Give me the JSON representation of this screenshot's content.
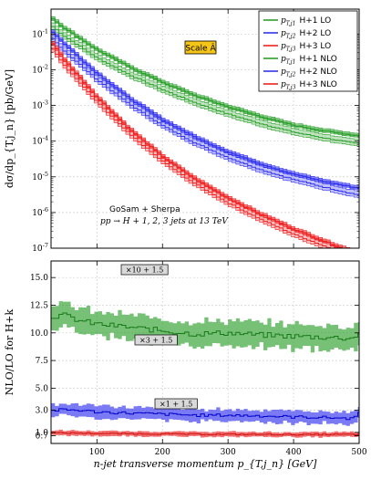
{
  "chart_data": [
    {
      "type": "line",
      "panel": "top",
      "ylabel": "dσ/dp_{T,j_n} [pb/GeV]",
      "yscale": "log",
      "ylim": [
        1e-07,
        0.5
      ],
      "xlim": [
        30,
        500
      ],
      "yticks": [
        "10^{-1}",
        "10^{-2}",
        "10^{-3}",
        "10^{-4}",
        "10^{-5}",
        "10^{-6}",
        "10^{-7}"
      ],
      "legend_position": "top-right",
      "annotation_scale": "Scale Â",
      "annotation_tool": "GoSam + Sherpa",
      "annotation_process": "pp → H + 1, 2, 3 jets at 13 TeV",
      "series": [
        {
          "name": "p_{T,j_1}  H+1 LO",
          "color": "#2ca02c",
          "order": "LO",
          "x": [
            30,
            50,
            75,
            100,
            150,
            200,
            250,
            300,
            350,
            400,
            450,
            490,
            500
          ],
          "values": [
            0.18,
            0.09,
            0.045,
            0.022,
            0.0073,
            0.0028,
            0.0012,
            0.00058,
            0.00031,
            0.00018,
            0.00012,
            9e-05,
            8.5e-05
          ]
        },
        {
          "name": "p_{T,j_2}  H+2 LO",
          "color": "#3333ee",
          "order": "LO",
          "x": [
            30,
            50,
            75,
            100,
            150,
            200,
            250,
            300,
            350,
            400,
            450,
            490,
            500
          ],
          "values": [
            0.085,
            0.035,
            0.014,
            0.0055,
            0.0011,
            0.00028,
            9e-05,
            3.5e-05,
            1.6e-05,
            8.5e-06,
            5e-06,
            3.4e-06,
            3.1e-06
          ]
        },
        {
          "name": "p_{T,j_3}  H+3 LO",
          "color": "#ee2222",
          "order": "LO",
          "x": [
            30,
            50,
            75,
            100,
            150,
            200,
            250,
            300,
            350,
            400,
            450,
            490,
            500
          ],
          "values": [
            0.045,
            0.014,
            0.0042,
            0.0013,
            0.00016,
            2.8e-05,
            6.5e-06,
            1.9e-06,
            6.5e-07,
            2.5e-07,
            1.1e-07,
            6e-08,
            5e-08
          ]
        },
        {
          "name": "p_{T,j_1}  H+1 NLO",
          "color": "#2ca02c",
          "order": "NLO",
          "x": [
            30,
            50,
            75,
            100,
            150,
            200,
            250,
            300,
            350,
            400,
            450,
            490,
            500
          ],
          "values": [
            0.3,
            0.15,
            0.075,
            0.037,
            0.012,
            0.0045,
            0.0019,
            0.00092,
            0.00049,
            0.00028,
            0.00019,
            0.00015,
            0.00014
          ]
        },
        {
          "name": "p_{T,j_2}  H+2 NLO",
          "color": "#3333ee",
          "order": "NLO",
          "x": [
            30,
            50,
            75,
            100,
            150,
            200,
            250,
            300,
            350,
            400,
            450,
            490,
            500
          ],
          "values": [
            0.13,
            0.055,
            0.021,
            0.0082,
            0.0016,
            0.0004,
            0.00013,
            5e-05,
            2.3e-05,
            1.2e-05,
            7.2e-06,
            5.2e-06,
            4.8e-06
          ]
        },
        {
          "name": "p_{T,j_3}  H+3 NLO",
          "color": "#ee2222",
          "order": "NLO",
          "x": [
            30,
            50,
            75,
            100,
            150,
            200,
            250,
            300,
            350,
            400,
            450,
            490,
            500
          ],
          "values": [
            0.065,
            0.02,
            0.006,
            0.0018,
            0.00022,
            3.8e-05,
            8.8e-06,
            2.6e-06,
            9e-07,
            3.5e-07,
            1.5e-07,
            8e-08,
            7e-08
          ]
        }
      ]
    },
    {
      "type": "line",
      "panel": "bottom",
      "ylabel": "NLO/LO  for H+k",
      "xlabel": "n-jet transverse momentum  p_{T,j_n} [GeV]",
      "xlim": [
        30,
        500
      ],
      "xticks": [
        "100",
        "200",
        "300",
        "400",
        "500"
      ],
      "ylim": [
        0,
        16.5
      ],
      "yticks": [
        "15.0",
        "12.5",
        "10.0",
        "7.5",
        "5.0",
        "3.0",
        "1.0",
        "0.7"
      ],
      "series": [
        {
          "name": "H+1",
          "label": "×10 + 1.5",
          "color": "#2ca02c",
          "x": [
            30,
            50,
            75,
            100,
            150,
            200,
            250,
            300,
            350,
            400,
            450,
            490,
            500
          ],
          "values": [
            11.5,
            11.6,
            11.1,
            10.8,
            10.5,
            10.2,
            9.9,
            10.0,
            9.8,
            9.7,
            9.6,
            9.5,
            10.0
          ],
          "band_half_width": 1.1
        },
        {
          "name": "H+2",
          "label": "×3 + 1.5",
          "color": "#3333ee",
          "x": [
            30,
            50,
            75,
            100,
            150,
            200,
            250,
            300,
            350,
            400,
            450,
            490,
            500
          ],
          "values": [
            2.95,
            3.05,
            3.0,
            2.85,
            2.75,
            2.65,
            2.55,
            2.55,
            2.5,
            2.4,
            2.35,
            2.25,
            2.9
          ],
          "band_half_width": 0.55
        },
        {
          "name": "H+3",
          "label": "×1 + 1.5",
          "color": "#ee2222",
          "x": [
            30,
            50,
            75,
            100,
            150,
            200,
            250,
            300,
            350,
            400,
            450,
            490,
            500
          ],
          "values": [
            0.94,
            0.95,
            0.93,
            0.9,
            0.88,
            0.86,
            0.84,
            0.83,
            0.82,
            0.8,
            0.81,
            0.82,
            0.82
          ],
          "band_half_width": 0.22
        }
      ]
    }
  ]
}
